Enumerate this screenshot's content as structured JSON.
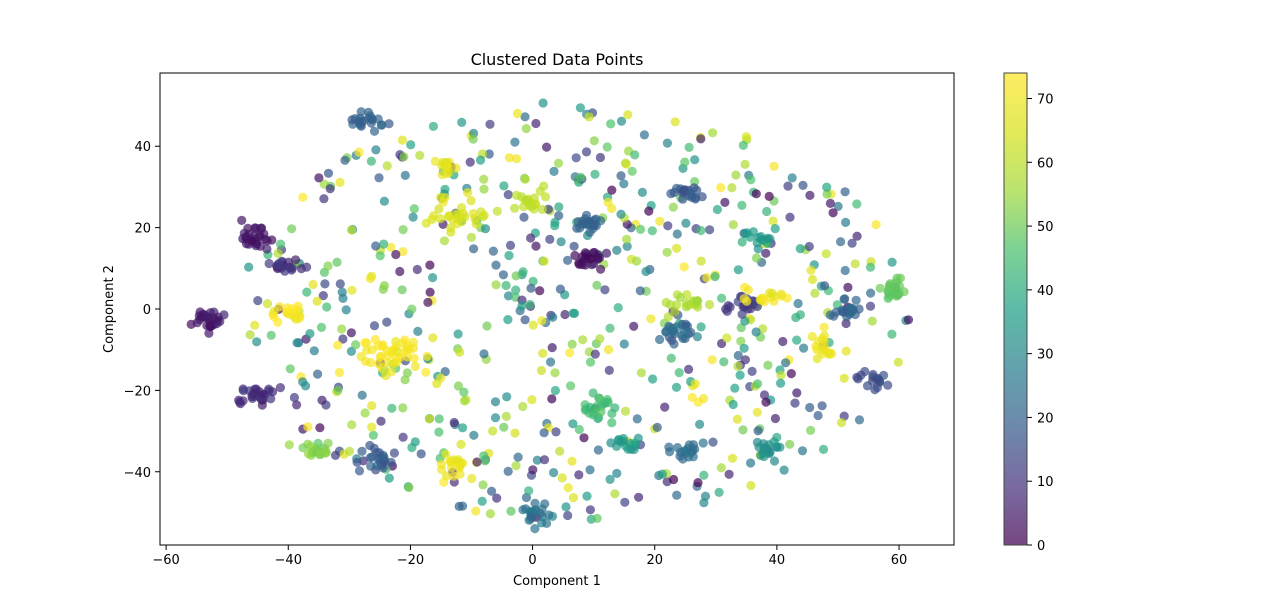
{
  "chart_data": {
    "type": "scatter",
    "title": "Clustered Data Points",
    "xlabel": "Component 1",
    "ylabel": "Component 2",
    "xlim": [
      -61,
      69
    ],
    "ylim": [
      -58,
      58
    ],
    "xticks": [
      -60,
      -40,
      -20,
      0,
      20,
      40,
      60
    ],
    "yticks": [
      -40,
      -20,
      0,
      20,
      40
    ],
    "grid": false,
    "colormap": "viridis",
    "colorbar": {
      "range": [
        0,
        74
      ],
      "ticks": [
        0,
        10,
        20,
        30,
        40,
        50,
        60,
        70
      ]
    },
    "alpha": 0.7,
    "clusters": [
      {
        "x": -53,
        "y": -2.5,
        "spread": 1.4,
        "n": 30,
        "value": 5
      },
      {
        "x": -45.5,
        "y": -21,
        "spread": 1.4,
        "n": 30,
        "value": 8
      },
      {
        "x": -45.5,
        "y": 18,
        "spread": 1.4,
        "n": 28,
        "value": 4
      },
      {
        "x": -40.5,
        "y": 10.5,
        "spread": 1.2,
        "n": 18,
        "value": 10
      },
      {
        "x": -40,
        "y": -1,
        "spread": 1.2,
        "n": 18,
        "value": 72
      },
      {
        "x": -36,
        "y": -35,
        "spread": 1.6,
        "n": 22,
        "value": 52
      },
      {
        "x": -27,
        "y": 46,
        "spread": 1.6,
        "n": 22,
        "value": 20
      },
      {
        "x": -25,
        "y": -37,
        "spread": 1.6,
        "n": 22,
        "value": 18
      },
      {
        "x": -23,
        "y": -12,
        "spread": 3.5,
        "n": 45,
        "value": 72
      },
      {
        "x": -14,
        "y": 35,
        "spread": 1.2,
        "n": 14,
        "value": 68
      },
      {
        "x": -12,
        "y": 23,
        "spread": 2.2,
        "n": 28,
        "value": 65
      },
      {
        "x": -13,
        "y": -38,
        "spread": 1.5,
        "n": 18,
        "value": 70
      },
      {
        "x": 0,
        "y": 27,
        "spread": 1.6,
        "n": 18,
        "value": 60
      },
      {
        "x": 0,
        "y": -50,
        "spread": 1.6,
        "n": 20,
        "value": 25
      },
      {
        "x": 9,
        "y": 12,
        "spread": 1.5,
        "n": 22,
        "value": 4
      },
      {
        "x": 9.5,
        "y": 20.5,
        "spread": 1.4,
        "n": 20,
        "value": 20
      },
      {
        "x": 11,
        "y": -24,
        "spread": 1.8,
        "n": 22,
        "value": 45
      },
      {
        "x": 15,
        "y": -33,
        "spread": 1.4,
        "n": 14,
        "value": 35
      },
      {
        "x": 24,
        "y": -6,
        "spread": 1.5,
        "n": 22,
        "value": 22
      },
      {
        "x": 25.5,
        "y": 29,
        "spread": 1.4,
        "n": 20,
        "value": 18
      },
      {
        "x": 25.5,
        "y": 1.5,
        "spread": 1.6,
        "n": 20,
        "value": 58
      },
      {
        "x": 25,
        "y": -35,
        "spread": 1.5,
        "n": 18,
        "value": 24
      },
      {
        "x": 34.5,
        "y": 1,
        "spread": 1.4,
        "n": 18,
        "value": 12
      },
      {
        "x": 38,
        "y": 3,
        "spread": 1.6,
        "n": 16,
        "value": 72
      },
      {
        "x": 38.5,
        "y": -34,
        "spread": 1.4,
        "n": 18,
        "value": 32
      },
      {
        "x": 38,
        "y": 17.5,
        "spread": 1.3,
        "n": 14,
        "value": 35
      },
      {
        "x": 47.5,
        "y": -10,
        "spread": 1.6,
        "n": 16,
        "value": 70
      },
      {
        "x": 51.5,
        "y": 0,
        "spread": 1.4,
        "n": 20,
        "value": 20
      },
      {
        "x": 56,
        "y": -17.5,
        "spread": 1.3,
        "n": 16,
        "value": 15
      },
      {
        "x": 59,
        "y": 5,
        "spread": 1.6,
        "n": 18,
        "value": 48
      }
    ],
    "background": {
      "n": 650,
      "x_range": [
        -48,
        62
      ],
      "y_range": [
        -52,
        51
      ],
      "value_range": [
        0,
        74
      ]
    }
  }
}
